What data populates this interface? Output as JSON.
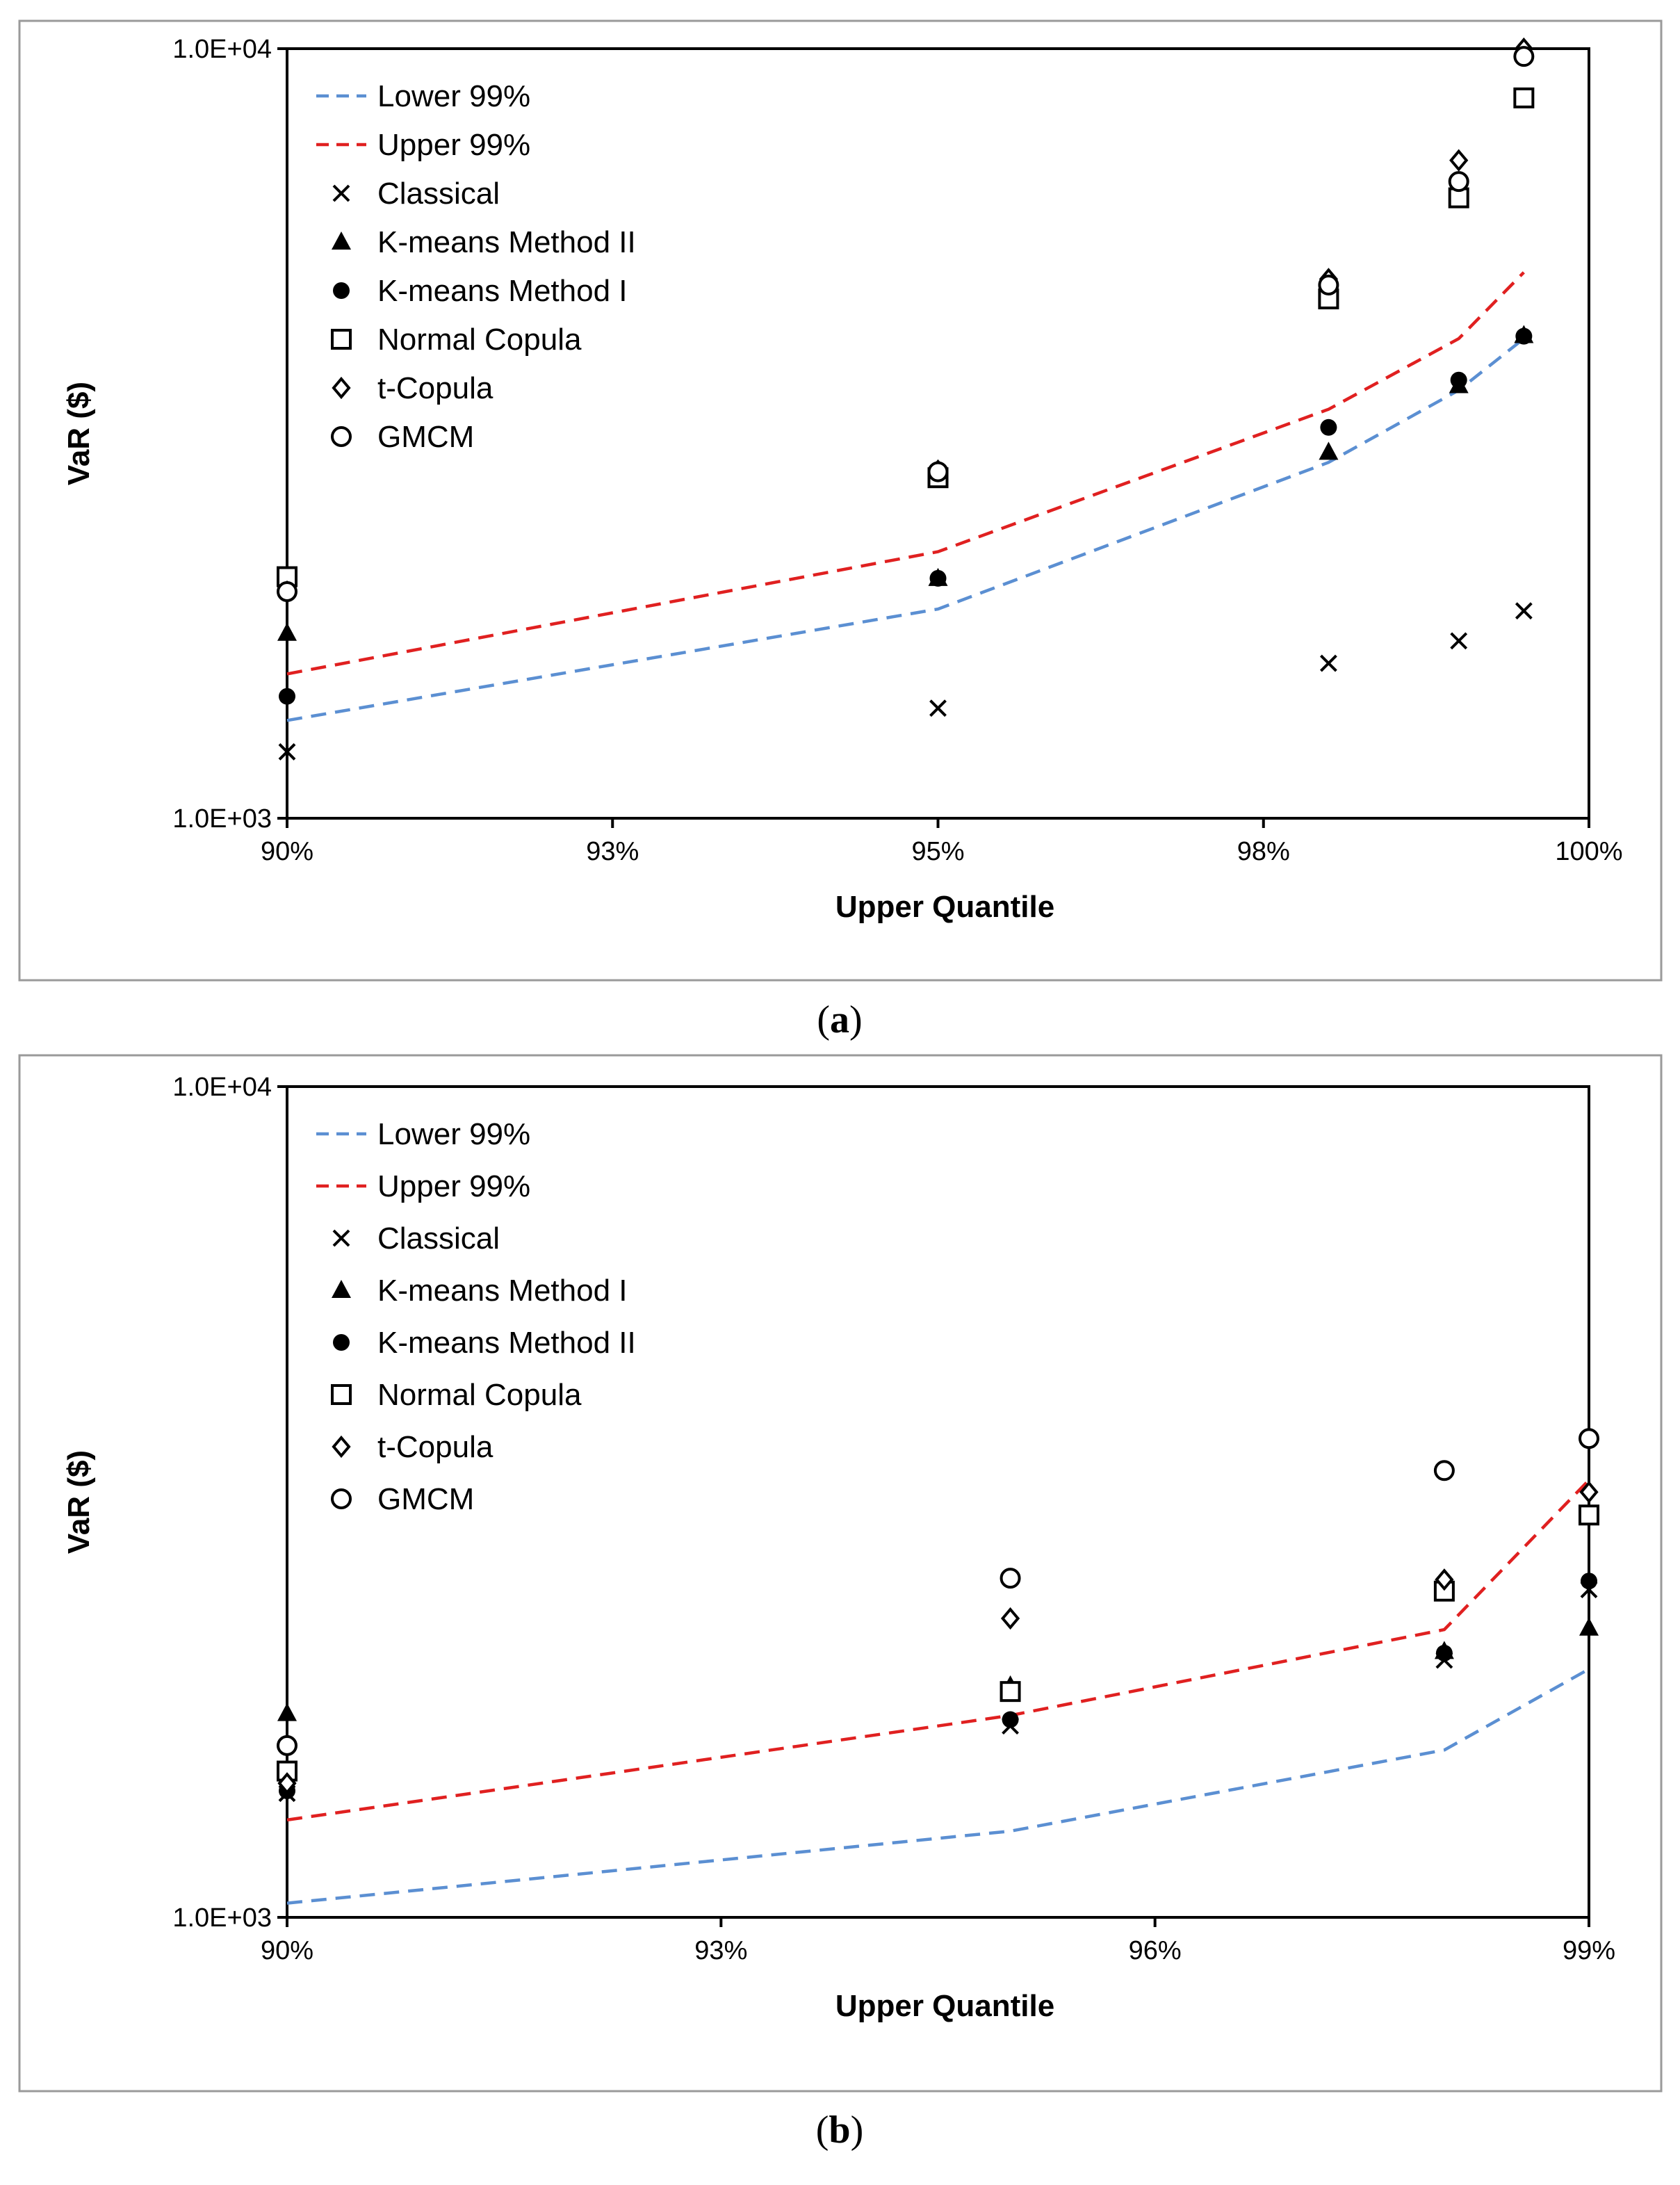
{
  "charts": [
    {
      "caption_letter": "a",
      "chart_data": {
        "type": "scatter",
        "xlabel": "Upper Quantile",
        "ylabel": "VaR ($)",
        "yscale": "log",
        "xlim": [
          0.9,
          1.0
        ],
        "ylim": [
          1000,
          10000
        ],
        "xticks": [
          0.9,
          0.925,
          0.95,
          0.975,
          1.0
        ],
        "xtick_labels": [
          "90%",
          "93%",
          "95%",
          "98%",
          "100%"
        ],
        "yticks": [
          1000,
          10000
        ],
        "ytick_labels": [
          "1.0E+03",
          "1.0E+04"
        ],
        "grid": false,
        "legend_position": "top-left",
        "series": [
          {
            "name": "Lower 99%",
            "style": "dashed-line",
            "color": "#5b8fd2",
            "points": [
              [
                0.9,
                1340
              ],
              [
                0.95,
                1870
              ],
              [
                0.98,
                2900
              ],
              [
                0.99,
                3600
              ],
              [
                0.995,
                4200
              ]
            ]
          },
          {
            "name": "Upper 99%",
            "style": "dashed-line",
            "color": "#e02020",
            "points": [
              [
                0.9,
                1540
              ],
              [
                0.95,
                2220
              ],
              [
                0.98,
                3400
              ],
              [
                0.99,
                4200
              ],
              [
                0.995,
                5120
              ]
            ]
          },
          {
            "name": "Classical",
            "marker": "x",
            "points": [
              [
                0.9,
                1220
              ],
              [
                0.95,
                1390
              ],
              [
                0.98,
                1590
              ],
              [
                0.99,
                1700
              ],
              [
                0.995,
                1860
              ]
            ]
          },
          {
            "name": "K-means Method II",
            "marker": "triangle",
            "points": [
              [
                0.9,
                1740
              ],
              [
                0.95,
                2050
              ],
              [
                0.98,
                2990
              ],
              [
                0.99,
                3650
              ],
              [
                0.995,
                4240
              ]
            ]
          },
          {
            "name": "K-means Method I",
            "marker": "circle-filled",
            "points": [
              [
                0.9,
                1440
              ],
              [
                0.95,
                2050
              ],
              [
                0.98,
                3220
              ],
              [
                0.99,
                3710
              ],
              [
                0.995,
                4230
              ]
            ]
          },
          {
            "name": "Normal Copula",
            "marker": "square-open",
            "points": [
              [
                0.9,
                2060
              ],
              [
                0.95,
                2770
              ],
              [
                0.98,
                4730
              ],
              [
                0.99,
                6400
              ],
              [
                0.995,
                8630
              ]
            ]
          },
          {
            "name": "t-Copula",
            "marker": "diamond-open",
            "points": [
              [
                0.9,
                1970
              ],
              [
                0.95,
                2830
              ],
              [
                0.98,
                5020
              ],
              [
                0.99,
                7160
              ],
              [
                0.995,
                10000
              ]
            ]
          },
          {
            "name": "GMCM",
            "marker": "circle-open",
            "points": [
              [
                0.9,
                1970
              ],
              [
                0.95,
                2820
              ],
              [
                0.98,
                4930
              ],
              [
                0.99,
                6720
              ],
              [
                0.995,
                9770
              ]
            ]
          }
        ]
      }
    },
    {
      "caption_letter": "b",
      "chart_data": {
        "type": "scatter",
        "xlabel": "Upper Quantile",
        "ylabel": "VaR ($)",
        "yscale": "log",
        "xlim": [
          0.9,
          0.99
        ],
        "ylim": [
          1000,
          10000
        ],
        "xticks": [
          0.9,
          0.93,
          0.96,
          0.99
        ],
        "xtick_labels": [
          "90%",
          "93%",
          "96%",
          "99%"
        ],
        "yticks": [
          1000,
          10000
        ],
        "ytick_labels": [
          "1.0E+03",
          "1.0E+04"
        ],
        "grid": false,
        "legend_position": "top-left",
        "series": [
          {
            "name": "Lower 99%",
            "style": "dashed-line",
            "color": "#5b8fd2",
            "points": [
              [
                0.9,
                1040
              ],
              [
                0.95,
                1270
              ],
              [
                0.98,
                1590
              ],
              [
                0.99,
                1990
              ]
            ]
          },
          {
            "name": "Upper 99%",
            "style": "dashed-line",
            "color": "#e02020",
            "points": [
              [
                0.9,
                1310
              ],
              [
                0.95,
                1750
              ],
              [
                0.98,
                2220
              ],
              [
                0.99,
                3360
              ]
            ]
          },
          {
            "name": "Classical",
            "marker": "x",
            "points": [
              [
                0.9,
                1410
              ],
              [
                0.95,
                1700
              ],
              [
                0.98,
                2040
              ],
              [
                0.99,
                2480
              ]
            ]
          },
          {
            "name": "K-means Method I",
            "marker": "triangle",
            "points": [
              [
                0.9,
                1760
              ],
              [
                0.95,
                1900
              ],
              [
                0.98,
                2090
              ],
              [
                0.99,
                2230
              ]
            ]
          },
          {
            "name": "K-means Method II",
            "marker": "circle-filled",
            "points": [
              [
                0.9,
                1420
              ],
              [
                0.95,
                1730
              ],
              [
                0.98,
                2080
              ],
              [
                0.99,
                2540
              ]
            ]
          },
          {
            "name": "Normal Copula",
            "marker": "square-open",
            "points": [
              [
                0.9,
                1500
              ],
              [
                0.95,
                1870
              ],
              [
                0.98,
                2470
              ],
              [
                0.99,
                3050
              ]
            ]
          },
          {
            "name": "t-Copula",
            "marker": "diamond-open",
            "points": [
              [
                0.9,
                1450
              ],
              [
                0.95,
                2290
              ],
              [
                0.98,
                2550
              ],
              [
                0.99,
                3250
              ]
            ]
          },
          {
            "name": "GMCM",
            "marker": "circle-open",
            "points": [
              [
                0.9,
                1610
              ],
              [
                0.95,
                2560
              ],
              [
                0.98,
                3450
              ],
              [
                0.99,
                3770
              ]
            ]
          }
        ]
      }
    }
  ]
}
